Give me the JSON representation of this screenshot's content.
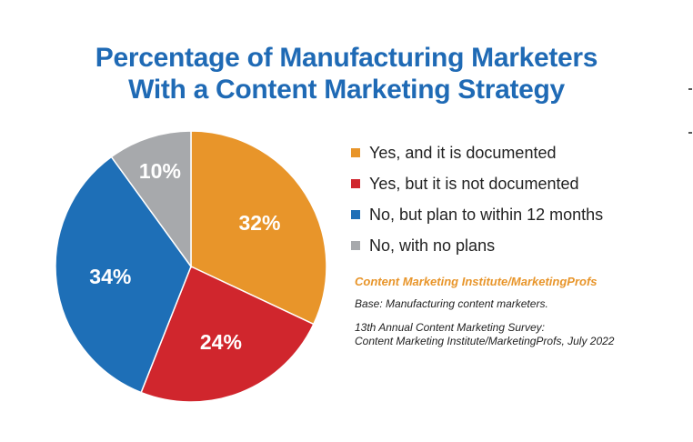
{
  "title": {
    "line1": "Percentage of Manufacturing Marketers",
    "line2": "With a Content Marketing Strategy"
  },
  "chart_data": {
    "type": "pie",
    "title": "Percentage of Manufacturing Marketers With a Content Marketing Strategy",
    "slices": [
      {
        "label": "Yes, and it is documented",
        "value": 32,
        "display": "32%",
        "color": "#e8952a"
      },
      {
        "label": "Yes, but it is not documented",
        "value": 24,
        "display": "24%",
        "color": "#d0262d"
      },
      {
        "label": "No, but plan to within 12 months",
        "value": 34,
        "display": "34%",
        "color": "#1e6fb7"
      },
      {
        "label": "No, with no plans",
        "value": 10,
        "display": "10%",
        "color": "#a7a9ac"
      }
    ],
    "legend_position": "right"
  },
  "source": {
    "title": "Content Marketing Institute/MarketingProfs",
    "base": "Base: Manufacturing content marketers.",
    "survey_line1": "13th Annual Content Marketing Survey:",
    "survey_line2": "Content Marketing Institute/MarketingProfs, July 2022"
  }
}
